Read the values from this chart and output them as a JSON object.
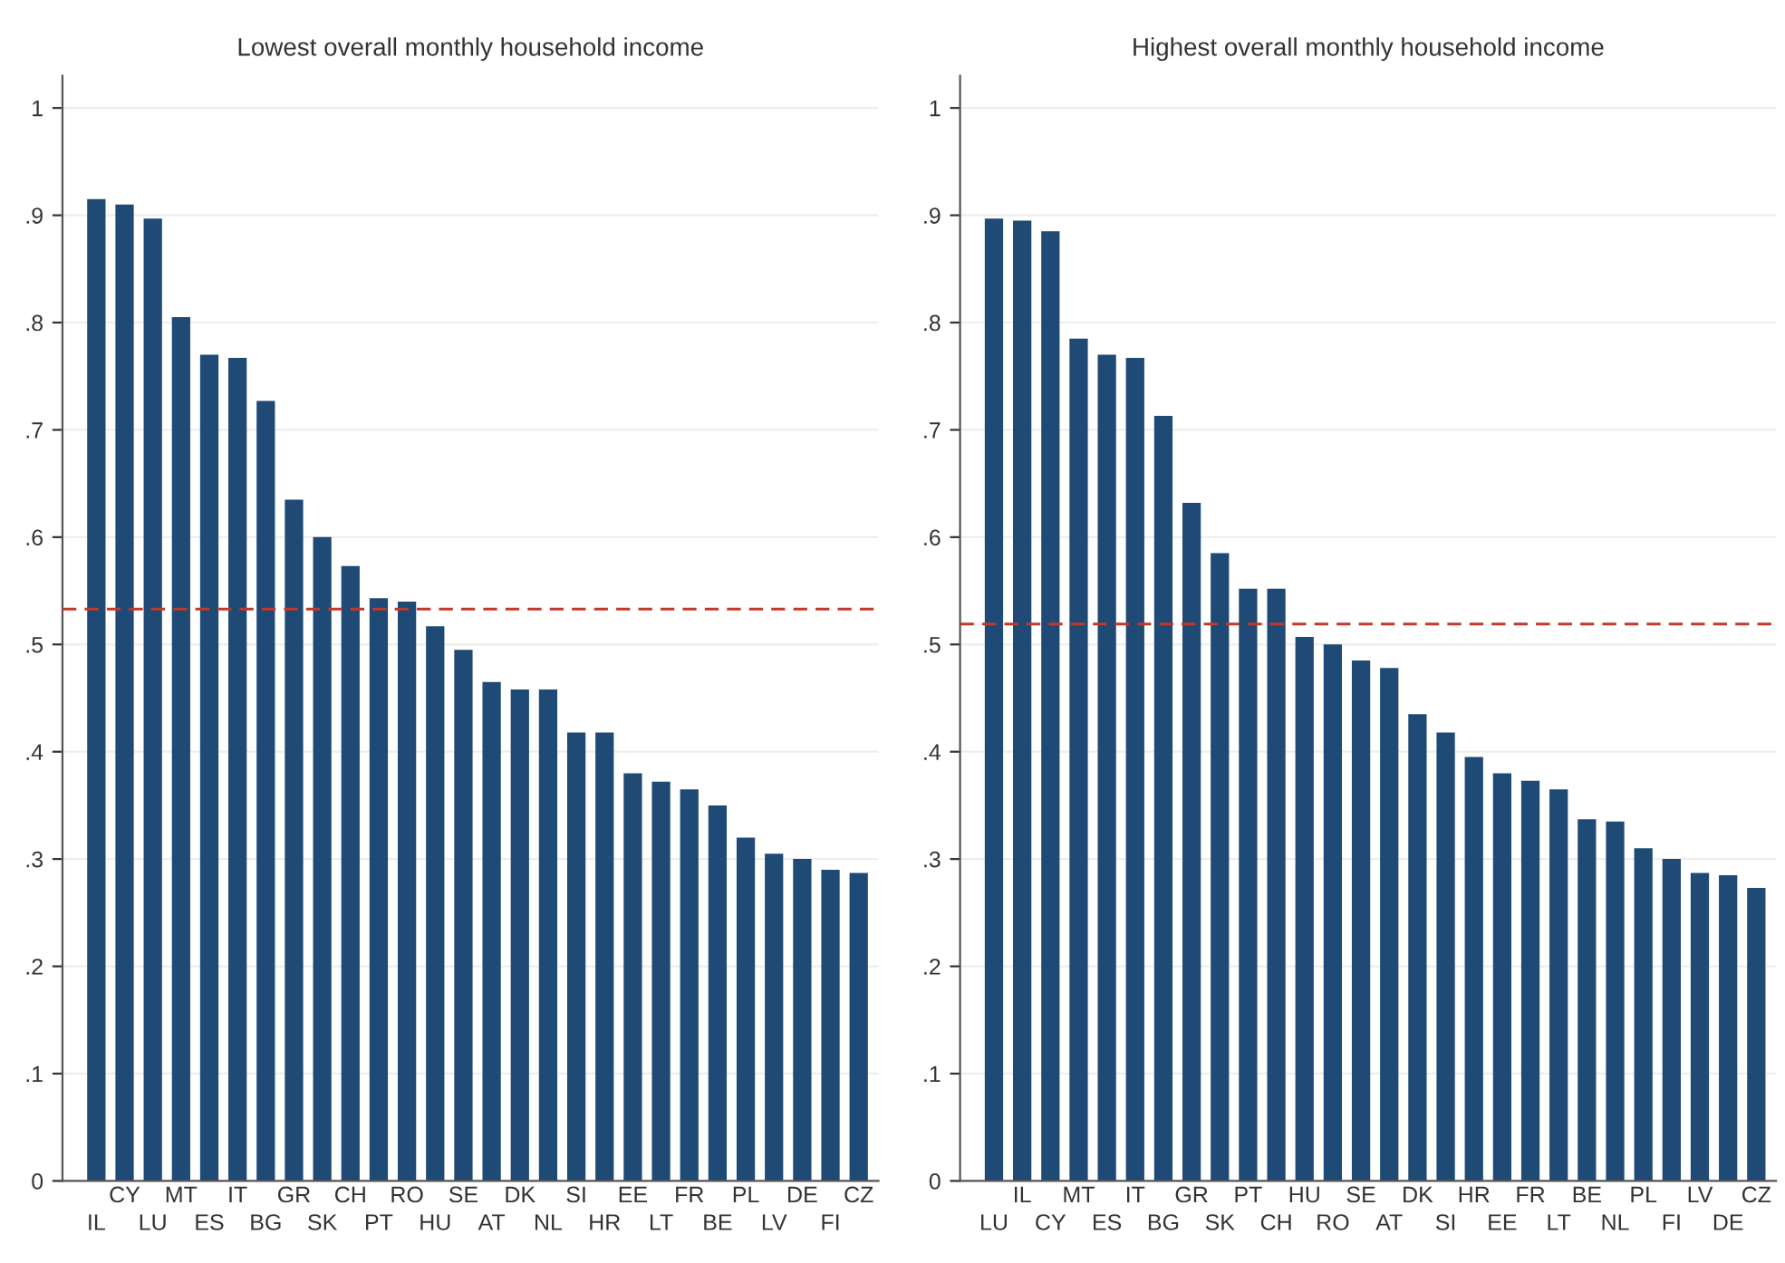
{
  "chart_data": [
    {
      "type": "bar",
      "title": "Lowest overall monthly household income",
      "categories": [
        "IL",
        "CY",
        "LU",
        "MT",
        "ES",
        "IT",
        "BG",
        "GR",
        "SK",
        "CH",
        "PT",
        "RO",
        "HU",
        "SE",
        "AT",
        "DK",
        "NL",
        "SI",
        "HR",
        "EE",
        "LT",
        "FR",
        "BE",
        "PL",
        "LV",
        "DE",
        "FI",
        "CZ"
      ],
      "values": [
        0.915,
        0.91,
        0.897,
        0.805,
        0.77,
        0.767,
        0.727,
        0.635,
        0.6,
        0.573,
        0.543,
        0.54,
        0.517,
        0.495,
        0.465,
        0.458,
        0.458,
        0.418,
        0.418,
        0.38,
        0.372,
        0.365,
        0.35,
        0.32,
        0.305,
        0.3,
        0.29,
        0.287
      ],
      "color": "#1f4a75",
      "ylim": [
        0,
        1.03
      ],
      "yticks": [
        0,
        {
          "value": 0.1,
          "label": ".1"
        },
        {
          "value": 0.2,
          "label": ".2"
        },
        {
          "value": 0.3,
          "label": ".3"
        },
        {
          "value": 0.4,
          "label": ".4"
        },
        {
          "value": 0.5,
          "label": ".5"
        },
        {
          "value": 0.6,
          "label": ".6"
        },
        {
          "value": 0.7,
          "label": ".7"
        },
        {
          "value": 0.8,
          "label": ".8"
        },
        {
          "value": 0.9,
          "label": ".9"
        },
        1
      ],
      "grid": "y",
      "ref_lines": [
        {
          "axis": "y",
          "value": 0.533,
          "color": "#c0392b",
          "line_style": "dashed"
        }
      ]
    },
    {
      "type": "bar",
      "title": "Highest overall monthly household income",
      "categories": [
        "LU",
        "IL",
        "CY",
        "MT",
        "ES",
        "IT",
        "BG",
        "GR",
        "SK",
        "PT",
        "CH",
        "HU",
        "RO",
        "SE",
        "AT",
        "DK",
        "SI",
        "HR",
        "EE",
        "FR",
        "LT",
        "BE",
        "NL",
        "PL",
        "FI",
        "LV",
        "DE",
        "CZ"
      ],
      "values": [
        0.897,
        0.895,
        0.885,
        0.785,
        0.77,
        0.767,
        0.713,
        0.632,
        0.585,
        0.552,
        0.552,
        0.507,
        0.5,
        0.485,
        0.478,
        0.435,
        0.418,
        0.395,
        0.38,
        0.373,
        0.365,
        0.337,
        0.335,
        0.31,
        0.3,
        0.287,
        0.285,
        0.273
      ],
      "color": "#1f4a75",
      "ylim": [
        0,
        1.03
      ],
      "yticks": [
        0,
        {
          "value": 0.1,
          "label": ".1"
        },
        {
          "value": 0.2,
          "label": ".2"
        },
        {
          "value": 0.3,
          "label": ".3"
        },
        {
          "value": 0.4,
          "label": ".4"
        },
        {
          "value": 0.5,
          "label": ".5"
        },
        {
          "value": 0.6,
          "label": ".6"
        },
        {
          "value": 0.7,
          "label": ".7"
        },
        {
          "value": 0.8,
          "label": ".8"
        },
        {
          "value": 0.9,
          "label": ".9"
        },
        1
      ],
      "grid": "y",
      "ref_lines": [
        {
          "axis": "y",
          "value": 0.519,
          "color": "#c0392b",
          "line_style": "dashed"
        }
      ]
    }
  ]
}
